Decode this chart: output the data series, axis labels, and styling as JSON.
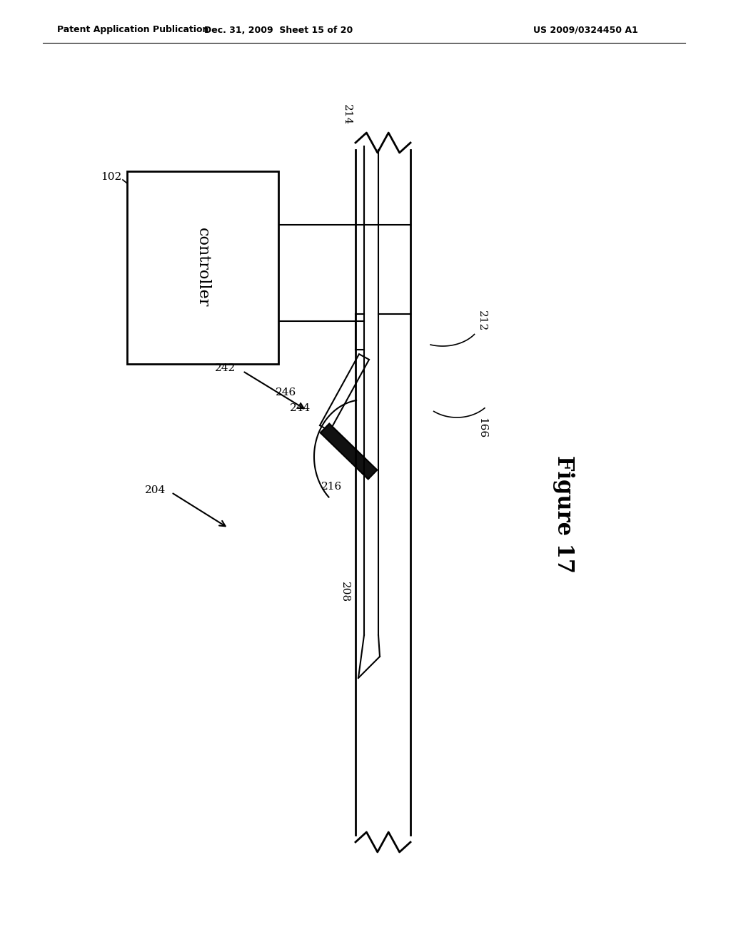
{
  "bg_color": "#ffffff",
  "line_color": "#000000",
  "header_left": "Patent Application Publication",
  "header_mid": "Dec. 31, 2009  Sheet 15 of 20",
  "header_right": "US 2009/0324450 A1",
  "figure_label": "Figure 17",
  "controller_label": "controller"
}
